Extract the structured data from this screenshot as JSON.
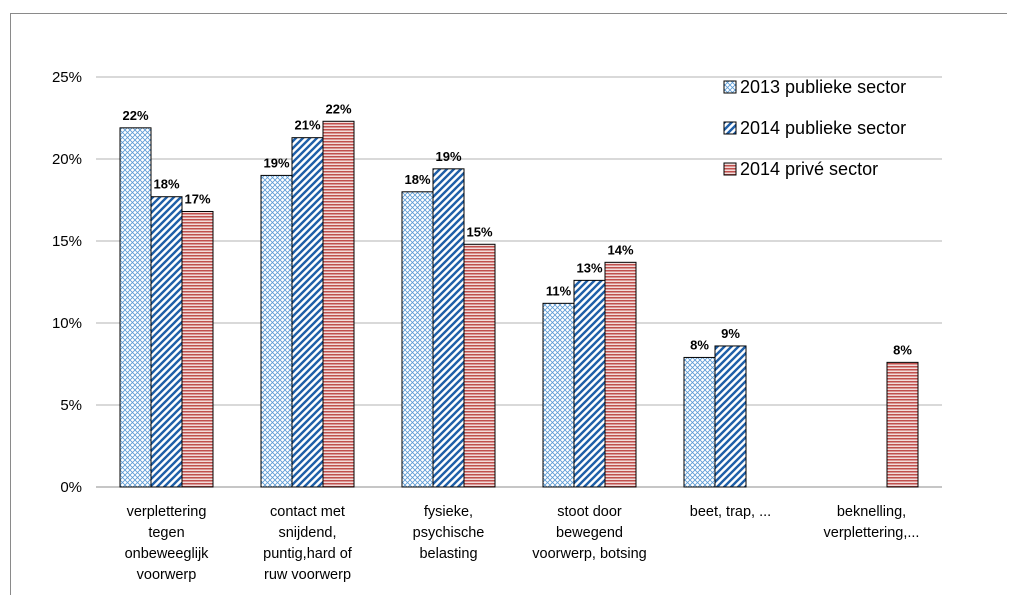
{
  "chart_data": {
    "type": "bar",
    "title": "",
    "xlabel": "",
    "ylabel": "",
    "ylim": [
      0,
      0.25
    ],
    "yticks": [
      "0%",
      "5%",
      "10%",
      "15%",
      "20%",
      "25%"
    ],
    "grid": true,
    "legend_position": "top-right",
    "categories": [
      [
        "verplettering",
        "tegen",
        "onbeweeglijk",
        "voorwerp"
      ],
      [
        "contact met",
        "snijdend,",
        "puntig,hard of",
        "ruw voorwerp"
      ],
      [
        "fysieke,",
        "psychische",
        "belasting"
      ],
      [
        "stoot door",
        "bewegend",
        "voorwerp, botsing"
      ],
      [
        "beet, trap, ..."
      ],
      [
        "beknelling,",
        "verplettering,..."
      ]
    ],
    "series": [
      {
        "name": "2013 publieke sector",
        "pattern": "diagonal-cross",
        "color": "#5b9bd5",
        "values": [
          0.219,
          0.19,
          0.18,
          0.112,
          0.079,
          null
        ],
        "labels": [
          "22%",
          "19%",
          "18%",
          "11%",
          "8%",
          ""
        ]
      },
      {
        "name": "2014 publieke sector",
        "pattern": "diagonal-stripes",
        "color": "#2e75b6",
        "values": [
          0.177,
          0.213,
          0.194,
          0.126,
          0.086,
          null
        ],
        "labels": [
          "18%",
          "21%",
          "19%",
          "13%",
          "9%",
          ""
        ]
      },
      {
        "name": "2014 privé sector",
        "pattern": "horizontal-stripes",
        "color": "#c0504d",
        "values": [
          0.168,
          0.223,
          0.148,
          0.137,
          null,
          0.076
        ],
        "labels": [
          "17%",
          "22%",
          "15%",
          "14%",
          "",
          "8%"
        ]
      }
    ]
  }
}
